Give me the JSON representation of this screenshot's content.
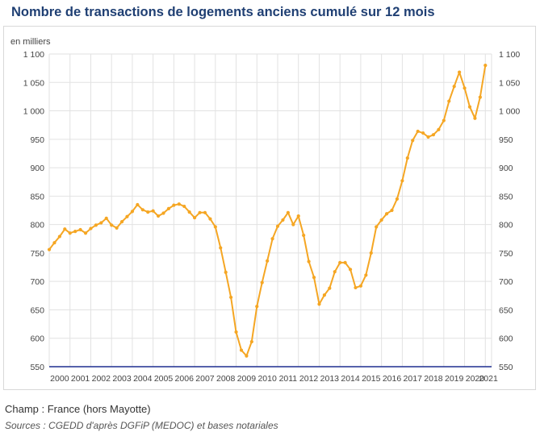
{
  "title": "Nombre de transactions de logements anciens cumulé sur 12 mois",
  "footer": {
    "champ": "Champ : France (hors Mayotte)",
    "sources": "Sources : CGEDD d'après DGFiP (MEDOC) et bases notariales"
  },
  "colors": {
    "line": "#f5a623",
    "grid": "#e2e2e2",
    "baseline": "#1f2f8f",
    "title": "#1f3f73"
  },
  "chart_data": {
    "type": "line",
    "title": "Nombre de transactions de logements anciens cumulé sur 12 mois",
    "unit_label": "en milliers",
    "ylim": [
      550,
      1100
    ],
    "yticks": [
      550,
      600,
      650,
      700,
      750,
      800,
      850,
      900,
      950,
      1000,
      1050,
      1100
    ],
    "ytick_labels": [
      "550",
      "600",
      "650",
      "700",
      "750",
      "800",
      "850",
      "900",
      "950",
      "1 000",
      "1 050",
      "1 100"
    ],
    "xlim": [
      2000,
      2021.3
    ],
    "xticks": [
      2000,
      2001,
      2002,
      2003,
      2004,
      2005,
      2006,
      2007,
      2008,
      2009,
      2010,
      2011,
      2012,
      2013,
      2014,
      2015,
      2016,
      2017,
      2018,
      2019,
      2020,
      2021
    ],
    "grid": true,
    "series": [
      {
        "x": [
          2000.0,
          2000.25,
          2000.5,
          2000.75,
          2001.0,
          2001.25,
          2001.5,
          2001.75,
          2002.0,
          2002.25,
          2002.5,
          2002.75,
          2003.0,
          2003.25,
          2003.5,
          2003.75,
          2004.0,
          2004.25,
          2004.5,
          2004.75,
          2005.0,
          2005.25,
          2005.5,
          2005.75,
          2006.0,
          2006.25,
          2006.5,
          2006.75,
          2007.0,
          2007.25,
          2007.5,
          2007.75,
          2008.0,
          2008.25,
          2008.5,
          2008.75,
          2009.0,
          2009.25,
          2009.5,
          2009.75,
          2010.0,
          2010.25,
          2010.5,
          2010.75,
          2011.0,
          2011.25,
          2011.5,
          2011.75,
          2012.0,
          2012.25,
          2012.5,
          2012.75,
          2013.0,
          2013.25,
          2013.5,
          2013.75,
          2014.0,
          2014.25,
          2014.5,
          2014.75,
          2015.0,
          2015.25,
          2015.5,
          2015.75,
          2016.0,
          2016.25,
          2016.5,
          2016.75,
          2017.0,
          2017.25,
          2017.5,
          2017.75,
          2018.0,
          2018.25,
          2018.5,
          2018.75,
          2019.0,
          2019.25,
          2019.5,
          2019.75,
          2020.0,
          2020.25,
          2020.5,
          2020.75,
          2021.0
        ],
        "y": [
          756,
          768,
          779,
          792,
          785,
          788,
          791,
          785,
          793,
          799,
          803,
          811,
          799,
          794,
          805,
          814,
          823,
          835,
          826,
          822,
          824,
          815,
          820,
          828,
          834,
          836,
          832,
          822,
          812,
          821,
          821,
          810,
          796,
          759,
          716,
          672,
          611,
          579,
          569,
          594,
          656,
          698,
          736,
          775,
          797,
          808,
          821,
          800,
          815,
          781,
          735,
          707,
          660,
          676,
          688,
          717,
          733,
          733,
          721,
          689,
          692,
          711,
          750,
          796,
          808,
          819,
          825,
          845,
          877,
          917,
          948,
          964,
          961,
          954,
          958,
          967,
          983,
          1017,
          1043,
          1068,
          1040,
          1007,
          987,
          1024,
          1080
        ]
      }
    ]
  }
}
